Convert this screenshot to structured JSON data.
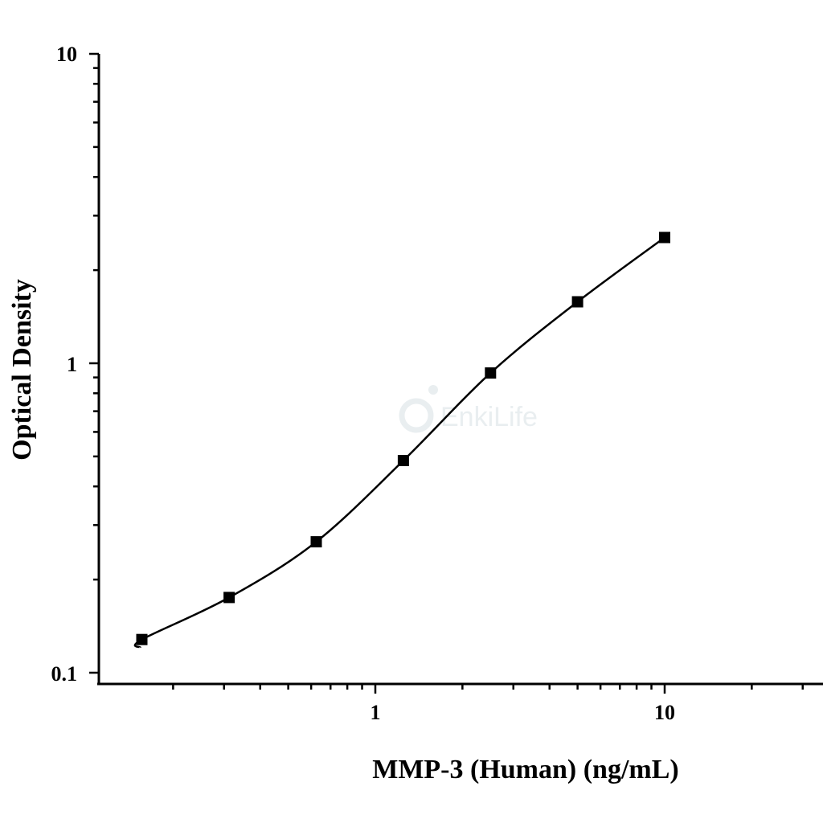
{
  "chart_data": {
    "type": "scatter",
    "x_scale": "log",
    "y_scale": "log",
    "xlim": [
      0.1,
      40
    ],
    "ylim": [
      0.1,
      10
    ],
    "xlabel": "MMP-3 (Human) (ng/mL)",
    "ylabel": "Optical Density",
    "x_ticks": [
      1,
      10
    ],
    "x_tick_labels": [
      "1",
      "10"
    ],
    "y_ticks": [
      0.1,
      1,
      10
    ],
    "y_tick_labels": [
      "0.1",
      "1",
      "10"
    ],
    "grid": false,
    "legend": "none",
    "series": [
      {
        "x": [
          0.156,
          0.3125,
          0.625,
          1.25,
          2.5,
          5,
          10
        ],
        "y": [
          0.128,
          0.175,
          0.265,
          0.485,
          0.93,
          1.58,
          2.55
        ],
        "marker": "square",
        "fit": "4PL curve"
      }
    ],
    "watermark": "EnkiLife",
    "colors": {
      "marker": "#000000",
      "curve": "#000000",
      "axis": "#000000",
      "watermark": "#e9eef0"
    }
  }
}
